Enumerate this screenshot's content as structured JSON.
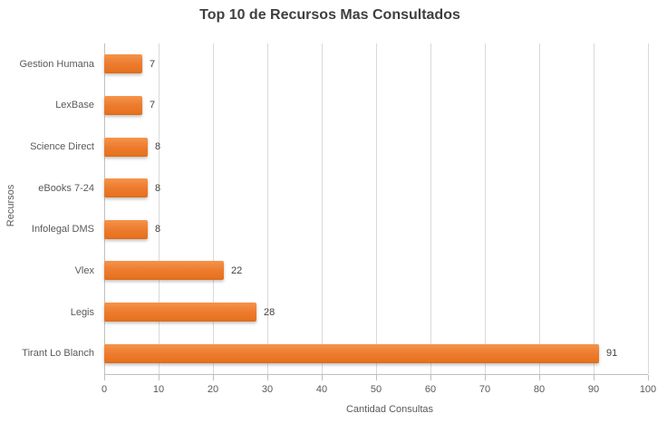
{
  "title": {
    "text": "Top 10 de Recursos Mas Consultados"
  },
  "chart_data": {
    "type": "bar",
    "orientation": "horizontal",
    "title": "Top 10 de Recursos Mas Consultados",
    "categories": [
      "Gestion Humana",
      "LexBase",
      "Science Direct",
      "eBooks 7-24",
      "Infolegal DMS",
      "Vlex",
      "Legis",
      "Tirant Lo Blanch"
    ],
    "values": [
      7,
      7,
      8,
      8,
      8,
      22,
      28,
      91
    ],
    "data_labels": [
      "7",
      "7",
      "8",
      "8",
      "8",
      "22",
      "28",
      "91"
    ],
    "xlabel": "Cantidad Consultas",
    "ylabel": "Recursos",
    "xlim": [
      0,
      100
    ],
    "x_ticks": [
      0,
      10,
      20,
      30,
      40,
      50,
      60,
      70,
      80,
      90,
      100
    ],
    "grid": true,
    "legend": false
  },
  "colors": {
    "bar_fill": "#ED7D31",
    "gridline": "#D9D9D9",
    "axis_line": "#BFBFBF",
    "title_text": "#3F3F3F",
    "axis_text": "#595959",
    "value_text": "#404040",
    "background": "#FFFFFF"
  }
}
